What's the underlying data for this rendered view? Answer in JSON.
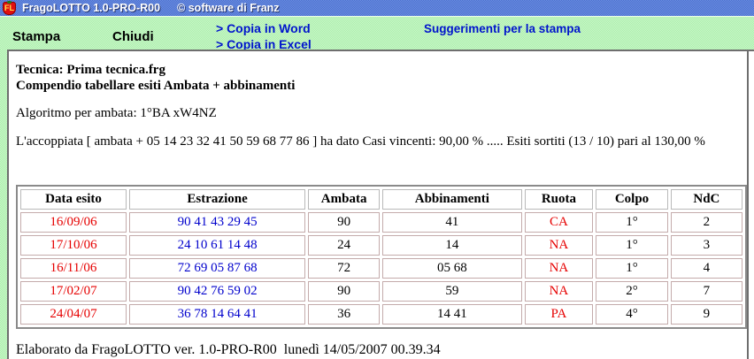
{
  "title_bar": {
    "icon_label": "FL",
    "title": "FragoLOTTO 1.0-PRO-R00",
    "subtitle": "© software di Franz"
  },
  "toolbar": {
    "stampa_label": "Stampa",
    "chiudi_label": "Chiudi",
    "copia_word_label": "> Copia in Word",
    "copia_excel_label": "> Copia in Excel",
    "suggerimenti_label": "Suggerimenti per la stampa"
  },
  "report": {
    "tecnica_line": "Tecnica: Prima tecnica.frg",
    "compendio_line": "Compendio tabellare esiti Ambata + abbinamenti",
    "algoritmo_line": "Algoritmo per ambata: 1°BA xW4NZ",
    "accoppiata_line": "L'accoppiata [ ambata + 05 14 23 32 41 50 59 68 77 86 ] ha dato Casi vincenti: 90,00 % ..... Esiti sortiti (13 / 10) pari al 130,00 %",
    "footer_line": "Elaborato da FragoLOTTO ver. 1.0-PRO-R00  lunedì 14/05/2007 00.39.34"
  },
  "table": {
    "columns": [
      {
        "key": "date",
        "label": "Data esito"
      },
      {
        "key": "estrazione",
        "label": "Estrazione"
      },
      {
        "key": "ambata",
        "label": "Ambata"
      },
      {
        "key": "abbinamenti",
        "label": "Abbinamenti"
      },
      {
        "key": "ruota",
        "label": "Ruota"
      },
      {
        "key": "colpo",
        "label": "Colpo"
      },
      {
        "key": "ndc",
        "label": "NdC"
      }
    ],
    "rows": [
      {
        "date": "16/09/06",
        "estrazione": "90 41 43 29 45",
        "ambata": "90",
        "abbinamenti": "41",
        "ruota": "CA",
        "colpo": "1°",
        "ndc": "2"
      },
      {
        "date": "17/10/06",
        "estrazione": "24 10 61 14 48",
        "ambata": "24",
        "abbinamenti": "14",
        "ruota": "NA",
        "colpo": "1°",
        "ndc": "3"
      },
      {
        "date": "16/11/06",
        "estrazione": "72 69 05 87 68",
        "ambata": "72",
        "abbinamenti": "05 68",
        "ruota": "NA",
        "colpo": "1°",
        "ndc": "4"
      },
      {
        "date": "17/02/07",
        "estrazione": "90 42 76 59 02",
        "ambata": "90",
        "abbinamenti": "59",
        "ruota": "NA",
        "colpo": "2°",
        "ndc": "7"
      },
      {
        "date": "24/04/07",
        "estrazione": "36 78 14 64 41",
        "ambata": "36",
        "abbinamenti": "14 41",
        "ruota": "PA",
        "colpo": "4°",
        "ndc": "9"
      }
    ]
  },
  "colors": {
    "red": "#e60000",
    "blue": "#0000cc",
    "link_blue": "#0014cc",
    "titlebar_a": "#6d90e0",
    "titlebar_b": "#4b6fd0",
    "toolbar_a": "#c9f7c9",
    "toolbar_b": "#aceeac"
  }
}
